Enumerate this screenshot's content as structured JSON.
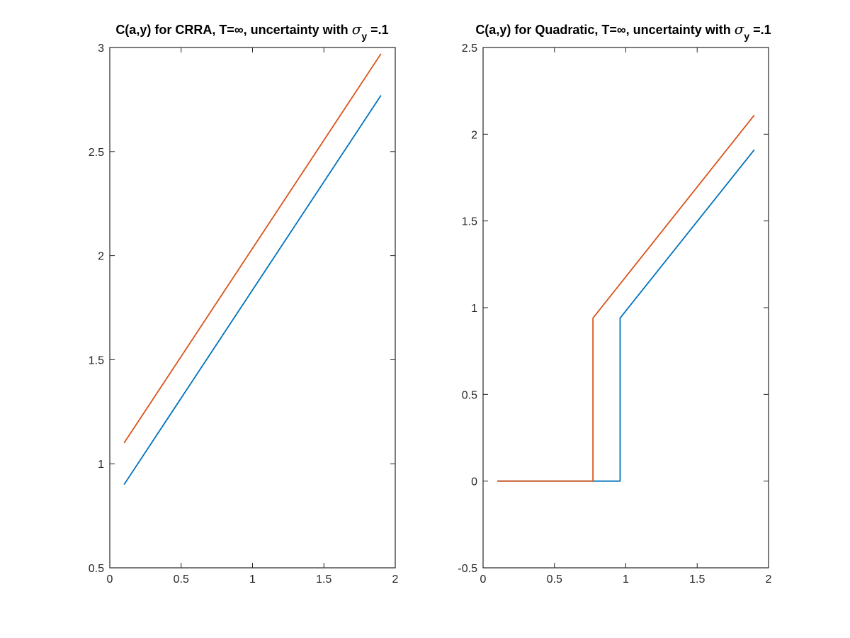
{
  "chart_data": [
    {
      "type": "line",
      "title": "C(a,y) for CRRA, T=∞, uncertainty with σ_y =.1",
      "title_parts": {
        "before_sigma": "C(a,y) for CRRA, T=∞, uncertainty with ",
        "sigma": "σ",
        "subscript": "y",
        "after": " =.1"
      },
      "xlabel": "",
      "ylabel": "",
      "xlim": [
        0,
        2
      ],
      "ylim": [
        0.5,
        3
      ],
      "xticks": [
        0,
        0.5,
        1,
        1.5,
        2
      ],
      "xtick_labels": [
        "0",
        "0.5",
        "1",
        "1.5",
        "2"
      ],
      "yticks": [
        0.5,
        1,
        1.5,
        2,
        2.5,
        3
      ],
      "ytick_labels": [
        "0.5",
        "1",
        "1.5",
        "2",
        "2.5",
        "3"
      ],
      "grid": false,
      "series": [
        {
          "color": "#0072BD",
          "x": [
            0.1,
            1.9
          ],
          "y": [
            0.9,
            2.77
          ]
        },
        {
          "color": "#D95319",
          "x": [
            0.1,
            1.9
          ],
          "y": [
            1.1,
            2.97
          ]
        }
      ]
    },
    {
      "type": "line",
      "title": "C(a,y) for Quadratic, T=∞, uncertainty with σ_y =.1",
      "title_parts": {
        "before_sigma": "C(a,y) for Quadratic, T=∞, uncertainty with ",
        "sigma": "σ",
        "subscript": "y",
        "after": " =.1"
      },
      "xlabel": "",
      "ylabel": "",
      "xlim": [
        0,
        2
      ],
      "ylim": [
        -0.5,
        2.5
      ],
      "xticks": [
        0,
        0.5,
        1,
        1.5,
        2
      ],
      "xtick_labels": [
        "0",
        "0.5",
        "1",
        "1.5",
        "2"
      ],
      "yticks": [
        -0.5,
        0,
        0.5,
        1,
        1.5,
        2,
        2.5
      ],
      "ytick_labels": [
        "-0.5",
        "0",
        "0.5",
        "1",
        "1.5",
        "2",
        "2.5"
      ],
      "grid": false,
      "series": [
        {
          "color": "#0072BD",
          "x": [
            0.1,
            0.96,
            0.96,
            1.9
          ],
          "y": [
            0,
            0,
            0.94,
            1.91
          ]
        },
        {
          "color": "#D95319",
          "x": [
            0.1,
            0.77,
            0.77,
            1.9
          ],
          "y": [
            0,
            0,
            0.94,
            2.11
          ]
        }
      ]
    }
  ]
}
